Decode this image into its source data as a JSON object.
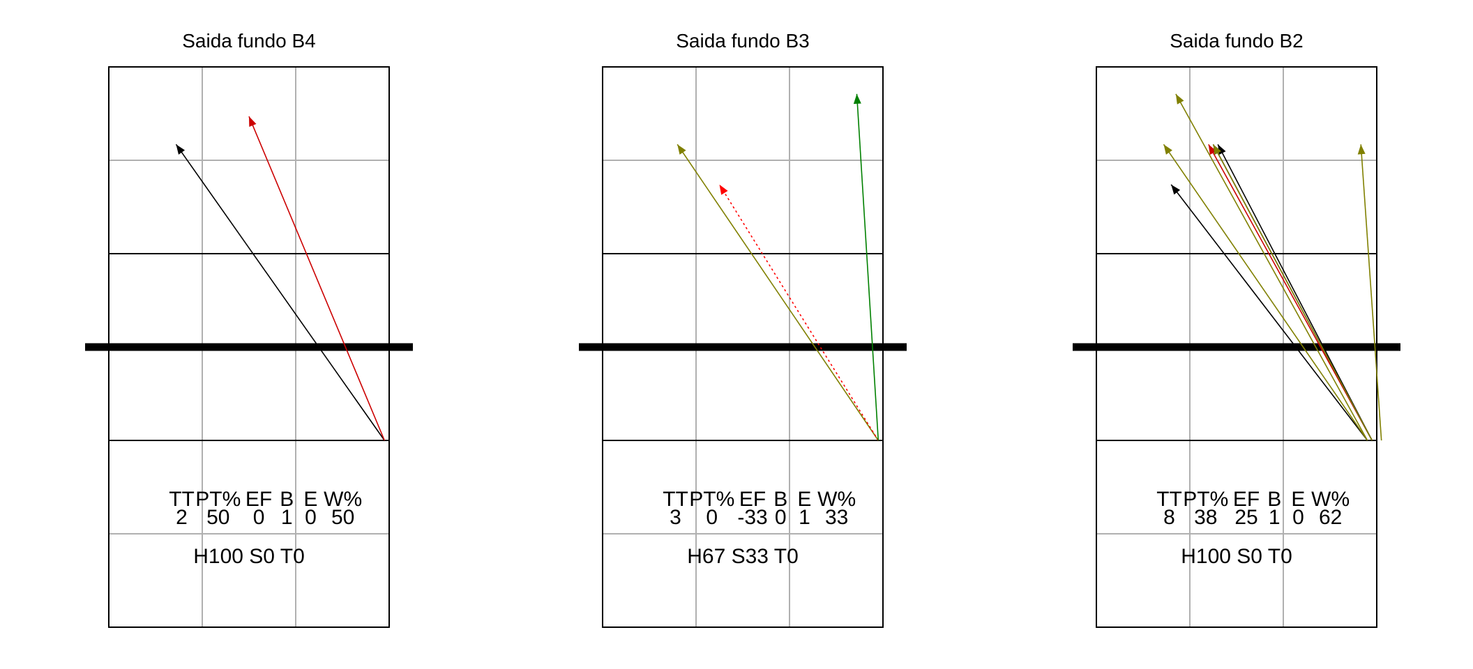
{
  "chart_data": [
    {
      "type": "vector",
      "title": "Saida fundo B4",
      "stats_header": [
        "TT",
        "PT%",
        "EF",
        "B",
        "E",
        "W%"
      ],
      "stats_values": [
        "2",
        "50",
        "0",
        "1",
        "0",
        "50"
      ],
      "summary": "H100 S0 T0",
      "xlim": [
        0,
        3
      ],
      "ylim": [
        0,
        6
      ],
      "grid": true,
      "vectors": [
        {
          "x0": 2.95,
          "y0": 2.0,
          "x1": 0.72,
          "y1": 5.17,
          "color": "#000000",
          "dash": false
        },
        {
          "x0": 2.95,
          "y0": 2.0,
          "x1": 1.5,
          "y1": 5.47,
          "color": "#cc0000",
          "dash": false
        }
      ]
    },
    {
      "type": "vector",
      "title": "Saida fundo B3",
      "stats_header": [
        "TT",
        "PT%",
        "EF",
        "B",
        "E",
        "W%"
      ],
      "stats_values": [
        "3",
        "0",
        "-33",
        "0",
        "1",
        "33"
      ],
      "summary": "H67 S33 T0",
      "xlim": [
        0,
        3
      ],
      "ylim": [
        0,
        6
      ],
      "grid": true,
      "vectors": [
        {
          "x0": 2.95,
          "y0": 2.0,
          "x1": 0.8,
          "y1": 5.17,
          "color": "#808000",
          "dash": false
        },
        {
          "x0": 2.95,
          "y0": 2.0,
          "x1": 1.25,
          "y1": 4.74,
          "color": "#ff0000",
          "dash": true
        },
        {
          "x0": 2.95,
          "y0": 2.0,
          "x1": 2.72,
          "y1": 5.71,
          "color": "#008000",
          "dash": false
        }
      ]
    },
    {
      "type": "vector",
      "title": "Saida fundo B2",
      "stats_header": [
        "TT",
        "PT%",
        "EF",
        "B",
        "E",
        "W%"
      ],
      "stats_values": [
        "8",
        "38",
        "25",
        "1",
        "0",
        "62"
      ],
      "summary": "H100 S0 T0",
      "xlim": [
        0,
        3
      ],
      "ylim": [
        0,
        6
      ],
      "grid": true,
      "vectors": [
        {
          "x0": 2.9,
          "y0": 2.0,
          "x1": 0.8,
          "y1": 4.74,
          "color": "#000000",
          "dash": false
        },
        {
          "x0": 2.9,
          "y0": 2.0,
          "x1": 0.72,
          "y1": 5.17,
          "color": "#808000",
          "dash": false
        },
        {
          "x0": 2.9,
          "y0": 2.0,
          "x1": 0.85,
          "y1": 5.71,
          "color": "#808000",
          "dash": false
        },
        {
          "x0": 2.95,
          "y0": 2.0,
          "x1": 1.2,
          "y1": 5.17,
          "color": "#cc0000",
          "dash": false
        },
        {
          "x0": 2.95,
          "y0": 2.0,
          "x1": 1.25,
          "y1": 5.17,
          "color": "#000000",
          "dash": false
        },
        {
          "x0": 2.95,
          "y0": 2.0,
          "x1": 1.3,
          "y1": 5.17,
          "color": "#000000",
          "dash": false
        },
        {
          "x0": 2.95,
          "y0": 2.0,
          "x1": 1.25,
          "y1": 5.17,
          "color": "#808000",
          "dash": false
        },
        {
          "x0": 3.05,
          "y0": 2.0,
          "x1": 2.83,
          "y1": 5.17,
          "color": "#808000",
          "dash": false
        }
      ]
    }
  ]
}
